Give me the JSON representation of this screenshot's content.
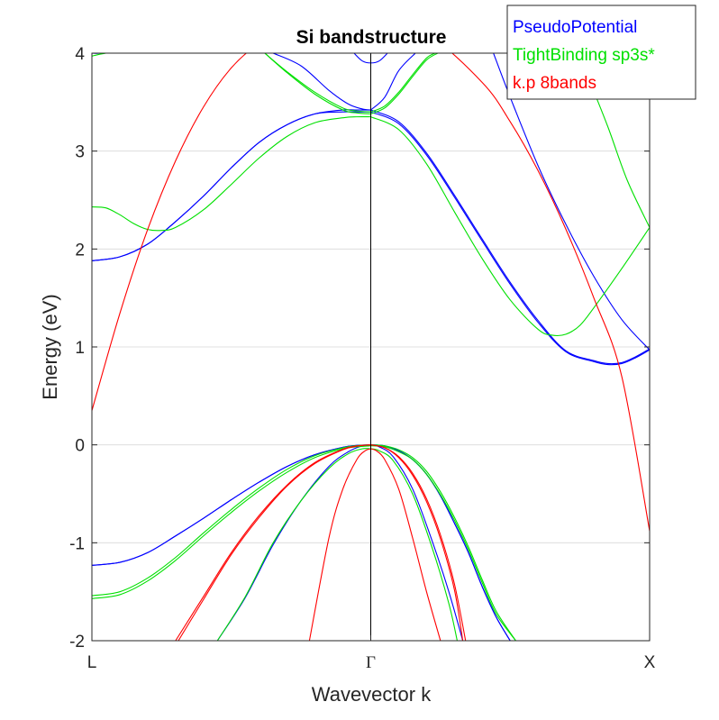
{
  "chart_data": {
    "type": "line",
    "title": "Si bandstructure",
    "xlabel": "Wavevector k",
    "ylabel": "Energy (eV)",
    "x_ticks": [
      "L",
      "Γ",
      "X"
    ],
    "x_range": [
      -1,
      1
    ],
    "ylim": [
      -2,
      4
    ],
    "y_ticks": [
      "-2",
      "-1",
      "0",
      "1",
      "2",
      "3",
      "4"
    ],
    "y_tick_values": [
      -2,
      -1,
      0,
      1,
      2,
      3,
      4
    ],
    "grid": "horizontal",
    "legend_position": "top-right",
    "legend": [
      {
        "name": "PseudoPotential",
        "color": "#0000ff"
      },
      {
        "name": "TightBinding sp3s*",
        "color": "#00e000"
      },
      {
        "name": "k.p 8bands",
        "color": "#ff0000"
      }
    ],
    "series": [
      {
        "name": "PseudoPotential",
        "color": "#0000ff",
        "bands": [
          {
            "x": [
              -1,
              -0.9,
              -0.8,
              -0.7,
              -0.6,
              -0.5,
              -0.4,
              -0.3,
              -0.2,
              -0.1,
              -0.05,
              0
            ],
            "y": [
              -1.23,
              -1.2,
              -1.1,
              -0.93,
              -0.75,
              -0.56,
              -0.38,
              -0.22,
              -0.1,
              -0.025,
              -0.006,
              0
            ]
          },
          {
            "x": [
              -1,
              -0.9,
              -0.8,
              -0.7,
              -0.6,
              -0.5,
              -0.4,
              -0.3,
              -0.2,
              -0.1,
              -0.05,
              0
            ],
            "y": [
              -1.23,
              -1.2,
              -1.1,
              -0.93,
              -0.75,
              -0.56,
              -0.38,
              -0.22,
              -0.1,
              -0.025,
              -0.006,
              0
            ]
          },
          {
            "x": [
              -0.55,
              -0.45,
              -0.35,
              -0.25,
              -0.15,
              -0.08,
              -0.03,
              0
            ],
            "y": [
              -2,
              -1.56,
              -1.02,
              -0.57,
              -0.22,
              -0.07,
              -0.01,
              0
            ]
          },
          {
            "x": [
              0,
              0.03,
              0.08,
              0.15,
              0.22,
              0.28,
              0.33
            ],
            "y": [
              0,
              -0.02,
              -0.12,
              -0.45,
              -0.98,
              -1.5,
              -2
            ]
          },
          {
            "x": [
              0,
              0.05,
              0.1,
              0.15,
              0.2,
              0.25,
              0.3,
              0.35,
              0.4,
              0.45,
              0.5
            ],
            "y": [
              0,
              -0.01,
              -0.06,
              -0.15,
              -0.3,
              -0.52,
              -0.8,
              -1.1,
              -1.45,
              -1.76,
              -2
            ]
          },
          {
            "x": [
              0,
              0.05,
              0.1,
              0.15,
              0.2,
              0.25,
              0.3,
              0.35,
              0.4,
              0.45,
              0.5
            ],
            "y": [
              0,
              -0.01,
              -0.06,
              -0.15,
              -0.3,
              -0.52,
              -0.8,
              -1.1,
              -1.45,
              -1.76,
              -2
            ]
          },
          {
            "x": [
              -1,
              -0.9,
              -0.8,
              -0.7,
              -0.6,
              -0.5,
              -0.4,
              -0.3,
              -0.2,
              -0.1,
              -0.05,
              0
            ],
            "y": [
              1.88,
              1.92,
              2.05,
              2.28,
              2.54,
              2.83,
              3.09,
              3.27,
              3.38,
              3.42,
              3.42,
              3.42
            ]
          },
          {
            "x": [
              -1,
              -0.9,
              -0.8,
              -0.7,
              -0.6,
              -0.5,
              -0.4,
              -0.3,
              -0.2,
              -0.1,
              -0.05,
              0
            ],
            "y": [
              1.88,
              1.92,
              2.05,
              2.28,
              2.54,
              2.83,
              3.09,
              3.27,
              3.38,
              3.4,
              3.4,
              3.4
            ]
          },
          {
            "x": [
              0,
              0.1,
              0.2,
              0.3,
              0.4,
              0.5,
              0.6,
              0.7,
              0.8,
              0.85,
              0.9,
              0.95,
              1
            ],
            "y": [
              3.42,
              3.3,
              2.98,
              2.55,
              2.1,
              1.66,
              1.27,
              0.96,
              0.86,
              0.83,
              0.84,
              0.9,
              0.98
            ]
          },
          {
            "x": [
              0,
              0.1,
              0.2,
              0.3,
              0.4,
              0.5,
              0.6,
              0.7,
              0.8,
              0.85,
              0.9,
              0.95,
              1
            ],
            "y": [
              3.4,
              3.28,
              2.96,
              2.53,
              2.08,
              1.64,
              1.25,
              0.95,
              0.85,
              0.82,
              0.83,
              0.89,
              0.97
            ]
          },
          {
            "x": [
              -0.35,
              -0.25,
              -0.15,
              -0.08,
              -0.03,
              0
            ],
            "y": [
              4,
              3.87,
              3.62,
              3.48,
              3.43,
              3.42
            ]
          },
          {
            "x": [
              0,
              0.05,
              0.1,
              0.16
            ],
            "y": [
              3.42,
              3.55,
              3.82,
              4
            ]
          },
          {
            "x": [
              -0.06,
              -0.03,
              0,
              0.03,
              0.06
            ],
            "y": [
              4,
              3.92,
              3.9,
              3.92,
              4
            ]
          },
          {
            "x": [
              0.44,
              0.5,
              0.6,
              0.7,
              0.8,
              0.9,
              1
            ],
            "y": [
              4,
              3.55,
              2.85,
              2.25,
              1.72,
              1.28,
              0.97
            ]
          },
          {
            "x": [
              -1,
              -0.97,
              -0.95
            ],
            "y": [
              4,
              4,
              4.02
            ]
          }
        ]
      },
      {
        "name": "TightBinding sp3s*",
        "color": "#00e000",
        "bands": [
          {
            "x": [
              -1,
              -0.9,
              -0.8,
              -0.7,
              -0.6,
              -0.5,
              -0.4,
              -0.3,
              -0.2,
              -0.1,
              -0.05,
              0
            ],
            "y": [
              -1.54,
              -1.5,
              -1.36,
              -1.15,
              -0.9,
              -0.66,
              -0.44,
              -0.25,
              -0.11,
              -0.03,
              -0.008,
              0
            ]
          },
          {
            "x": [
              -1,
              -0.9,
              -0.8,
              -0.7,
              -0.6,
              -0.5,
              -0.4,
              -0.3,
              -0.2,
              -0.1,
              -0.05,
              0
            ],
            "y": [
              -1.57,
              -1.53,
              -1.39,
              -1.18,
              -0.93,
              -0.69,
              -0.47,
              -0.28,
              -0.13,
              -0.04,
              -0.02,
              -0.01
            ]
          },
          {
            "x": [
              -0.55,
              -0.45,
              -0.35,
              -0.25,
              -0.15,
              -0.08,
              -0.03,
              0
            ],
            "y": [
              -2,
              -1.55,
              -1.0,
              -0.57,
              -0.24,
              -0.09,
              -0.04,
              -0.04
            ]
          },
          {
            "x": [
              0,
              0.03,
              0.08,
              0.15,
              0.22,
              0.28,
              0.31
            ],
            "y": [
              -0.04,
              -0.06,
              -0.16,
              -0.5,
              -1.05,
              -1.62,
              -2
            ]
          },
          {
            "x": [
              0,
              0.05,
              0.1,
              0.15,
              0.2,
              0.25,
              0.3,
              0.35,
              0.4,
              0.45,
              0.52
            ],
            "y": [
              0,
              -0.01,
              -0.05,
              -0.13,
              -0.27,
              -0.48,
              -0.74,
              -1.04,
              -1.38,
              -1.7,
              -2
            ]
          },
          {
            "x": [
              0,
              0.05,
              0.1,
              0.15,
              0.2,
              0.25,
              0.3,
              0.35,
              0.4,
              0.45,
              0.52
            ],
            "y": [
              -0.01,
              -0.02,
              -0.07,
              -0.15,
              -0.3,
              -0.51,
              -0.77,
              -1.07,
              -1.41,
              -1.73,
              -2
            ]
          },
          {
            "x": [
              -1,
              -0.95,
              -0.9,
              -0.85,
              -0.8,
              -0.75,
              -0.7,
              -0.6,
              -0.5,
              -0.4,
              -0.3,
              -0.2,
              -0.1,
              -0.05,
              0
            ],
            "y": [
              2.43,
              2.42,
              2.35,
              2.26,
              2.2,
              2.19,
              2.22,
              2.4,
              2.66,
              2.93,
              3.15,
              3.29,
              3.34,
              3.35,
              3.35
            ]
          },
          {
            "x": [
              0,
              0.1,
              0.2,
              0.3,
              0.4,
              0.5,
              0.6,
              0.65,
              0.7,
              0.75,
              0.8,
              0.9,
              1
            ],
            "y": [
              3.35,
              3.22,
              2.87,
              2.38,
              1.9,
              1.48,
              1.18,
              1.12,
              1.13,
              1.22,
              1.4,
              1.8,
              2.22
            ]
          },
          {
            "x": [
              -0.38,
              -0.3,
              -0.2,
              -0.1,
              -0.05,
              0
            ],
            "y": [
              4,
              3.8,
              3.58,
              3.42,
              3.39,
              3.38
            ]
          },
          {
            "x": [
              -0.38,
              -0.3,
              -0.2,
              -0.1,
              -0.05,
              0
            ],
            "y": [
              4,
              3.81,
              3.6,
              3.44,
              3.41,
              3.4
            ]
          },
          {
            "x": [
              0,
              0.05,
              0.1,
              0.15,
              0.2,
              0.24
            ],
            "y": [
              3.38,
              3.44,
              3.58,
              3.76,
              3.93,
              4
            ]
          },
          {
            "x": [
              0,
              0.05,
              0.1,
              0.15,
              0.2,
              0.23
            ],
            "y": [
              3.4,
              3.46,
              3.6,
              3.78,
              3.95,
              4
            ]
          },
          {
            "x": [
              0.78,
              0.85,
              0.92,
              1
            ],
            "y": [
              3.75,
              3.25,
              2.7,
              2.22
            ]
          },
          {
            "x": [
              -1,
              -0.97,
              -0.95
            ],
            "y": [
              3.97,
              3.99,
              4.0
            ]
          }
        ]
      },
      {
        "name": "k.p 8bands",
        "color": "#ff0000",
        "bands": [
          {
            "x": [
              -1,
              -0.9,
              -0.8,
              -0.7,
              -0.6,
              -0.5,
              -0.4,
              -0.3,
              -0.2,
              -0.1,
              0
            ],
            "y": [
              0.35,
              1.34,
              2.2,
              2.9,
              3.45,
              3.85,
              4.1,
              4.23,
              4.25,
              4.15,
              4.0
            ]
          },
          {
            "x": [
              0,
              0.2,
              0.4,
              0.5,
              0.6,
              0.7,
              0.8,
              0.9,
              1
            ],
            "y": [
              4.4,
              4.2,
              3.7,
              3.3,
              2.8,
              2.2,
              1.5,
              0.7,
              -0.88
            ]
          },
          {
            "x": [
              -0.7,
              -0.6,
              -0.5,
              -0.4,
              -0.3,
              -0.2,
              -0.1,
              -0.05,
              0
            ],
            "y": [
              -2,
              -1.55,
              -1.1,
              -0.72,
              -0.41,
              -0.18,
              -0.045,
              -0.011,
              0
            ]
          },
          {
            "x": [
              -0.69,
              -0.6,
              -0.5,
              -0.4,
              -0.3,
              -0.2,
              -0.1,
              -0.05,
              0
            ],
            "y": [
              -2,
              -1.58,
              -1.12,
              -0.74,
              -0.42,
              -0.19,
              -0.05,
              -0.013,
              0
            ]
          },
          {
            "x": [
              0,
              0.05,
              0.1,
              0.15,
              0.2,
              0.25,
              0.3,
              0.33
            ],
            "y": [
              0,
              -0.03,
              -0.13,
              -0.31,
              -0.58,
              -0.96,
              -1.48,
              -2
            ]
          },
          {
            "x": [
              0,
              0.05,
              0.1,
              0.15,
              0.2,
              0.25,
              0.3,
              0.34
            ],
            "y": [
              0,
              -0.03,
              -0.12,
              -0.29,
              -0.55,
              -0.92,
              -1.42,
              -2
            ]
          },
          {
            "x": [
              -0.22,
              -0.15,
              -0.1,
              -0.05,
              -0.02,
              0
            ],
            "y": [
              -2,
              -0.95,
              -0.45,
              -0.15,
              -0.06,
              -0.04
            ]
          },
          {
            "x": [
              0,
              0.02,
              0.05,
              0.1,
              0.15,
              0.2,
              0.25
            ],
            "y": [
              -0.04,
              -0.06,
              -0.15,
              -0.45,
              -0.95,
              -1.5,
              -2
            ]
          }
        ]
      }
    ]
  }
}
